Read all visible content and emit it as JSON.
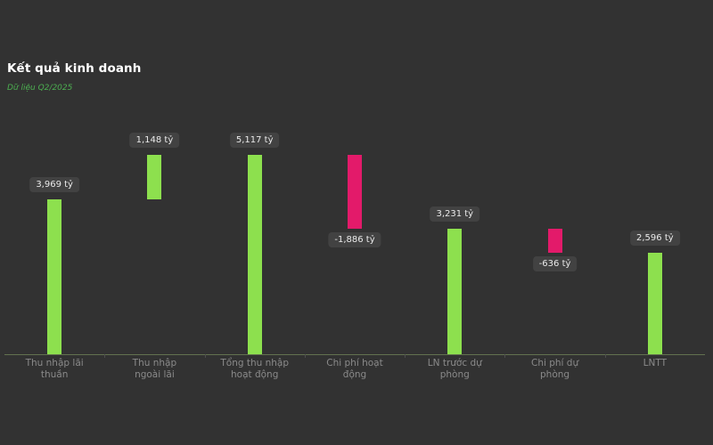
{
  "header": {
    "title": "Kết quả kinh doanh",
    "subtitle": "Dữ liệu Q2/2025"
  },
  "colors": {
    "background": "#323232",
    "positive": "#8de04e",
    "negative": "#e31a6a",
    "subtitle": "#4caf50",
    "axis_line": "#62714f",
    "badge_bg": "#424242",
    "badge_text": "#eaeaea",
    "axis_label": "#8a8a8a"
  },
  "chart_data": {
    "type": "bar",
    "subtype": "waterfall",
    "title": "Kết quả kinh doanh",
    "subtitle": "Dữ liệu Q2/2025",
    "unit": "tỷ",
    "categories": [
      "Thu nhập lãi thuần",
      "Thu nhập ngoài lãi",
      "Tổng thu nhập hoạt động",
      "Chi phí hoạt động",
      "LN trước dự phòng",
      "Chi phí dự phòng",
      "LNTT"
    ],
    "categories_lines": [
      [
        "Thu nhập lãi",
        "thuần"
      ],
      [
        "Thu nhập",
        "ngoài lãi"
      ],
      [
        "Tổng thu nhập",
        "hoạt động"
      ],
      [
        "Chi phí hoạt",
        "động"
      ],
      [
        "LN trước dự",
        "phòng"
      ],
      [
        "Chi phí dự",
        "phòng"
      ],
      [
        "LNTT"
      ]
    ],
    "values": [
      3969,
      1148,
      5117,
      -1886,
      3231,
      -636,
      2596
    ],
    "value_labels": [
      "3,969 tỷ",
      "1,148 tỷ",
      "5,117 tỷ",
      "-1,886 tỷ",
      "3,231 tỷ",
      "-636 tỷ",
      "2,596 tỷ"
    ],
    "segments": [
      [
        0,
        3969
      ],
      [
        3969,
        5117
      ],
      [
        0,
        5117
      ],
      [
        3231,
        5117
      ],
      [
        0,
        3231
      ],
      [
        2595,
        3231
      ],
      [
        0,
        2596
      ]
    ],
    "ylim": [
      0,
      5117
    ],
    "grid": false,
    "legend": false
  }
}
